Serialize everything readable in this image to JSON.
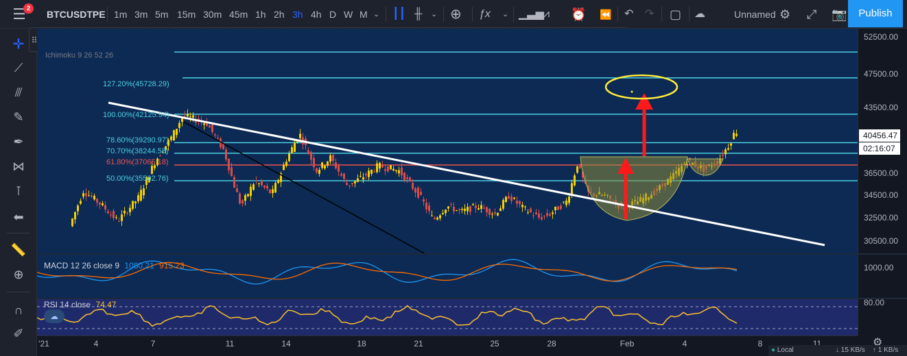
{
  "header": {
    "notifications": "2",
    "symbol": "BTCUSDTPE",
    "intervals": [
      "1m",
      "3m",
      "5m",
      "15m",
      "30m",
      "45m",
      "1h",
      "2h",
      "3h",
      "4h",
      "D",
      "W",
      "M"
    ],
    "active_interval": "3h",
    "layout_name": "Unnamed",
    "publish_label": "Publish"
  },
  "indicator": {
    "ichimoku_label": "Ichimoku 9 26 52 26"
  },
  "fib_levels": [
    {
      "label": "127.20%(45728.29)",
      "price": 45728.29,
      "color": "#4dd0e1"
    },
    {
      "label": "100.00%(42125.94)",
      "price": 42125.94,
      "color": "#4dd0e1"
    },
    {
      "label": "78.60%(39290.97)",
      "price": 39290.97,
      "color": "#4dd0e1"
    },
    {
      "label": "70.70%(38244.58)",
      "price": 38244.58,
      "color": "#4dd0e1"
    },
    {
      "label": "61.80%(37065.18)",
      "price": 37065.18,
      "color": "#ef5350"
    },
    {
      "label": "50.00%(35502.76)",
      "price": 35502.76,
      "color": "#4dd0e1"
    }
  ],
  "price_scale": {
    "labels": [
      "52500.00",
      "47500.00",
      "43500.00",
      "36500.00",
      "34500.00",
      "32500.00",
      "30500.00"
    ],
    "current_price": "40456.47",
    "countdown": "02:16:07"
  },
  "macd": {
    "label": "MACD 12 26 close 9",
    "value1": "1080.21",
    "value2": "915.23",
    "scale_label": "1000.00",
    "color1": "#2196f3",
    "color2": "#ff6d00"
  },
  "rsi": {
    "label": "RSI 14 close",
    "value": "74.47",
    "scale_label": "80.00",
    "color": "#fbc02d"
  },
  "time_scale": [
    "'21",
    "4",
    "7",
    "11",
    "14",
    "18",
    "21",
    "25",
    "28",
    "Feb",
    "4",
    "8",
    "11"
  ],
  "status": {
    "timezone": "Local",
    "down": "15 KB/s",
    "up": "1 KB/s"
  }
}
